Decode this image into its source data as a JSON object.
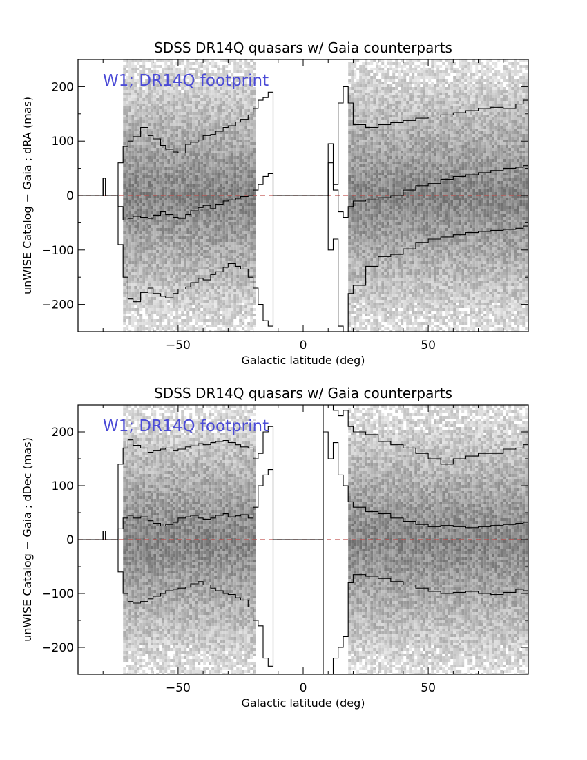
{
  "colors": {
    "annotation": "#4b4bd6",
    "zero_line": "#c0504d",
    "density": "#808080",
    "contours": "#000000"
  },
  "chart_data": [
    {
      "type": "heatmap",
      "title": "SDSS DR14Q quasars w/ Gaia counterparts",
      "xlabel": "Galactic latitude (deg)",
      "ylabel": "unWISE Catalog − Gaia ; dRA (mas)",
      "annotation": "W1; DR14Q footprint",
      "xlim": [
        -90,
        90
      ],
      "ylim": [
        -250,
        250
      ],
      "xticks": [
        -50,
        0,
        50
      ],
      "xtick_labels": [
        "−50",
        "0",
        "50"
      ],
      "yticks": [
        -200,
        -100,
        0,
        100,
        200
      ],
      "ytick_labels": [
        "−200",
        "−100",
        "0",
        "100",
        "200"
      ],
      "reference_line_y": 0,
      "density_ranges": [
        [
          -72,
          -20
        ],
        [
          18,
          90
        ]
      ],
      "series": [
        {
          "x": [
            -88,
            -80,
            -80,
            -79,
            -79,
            -74,
            -72,
            -70,
            -68,
            -65,
            -62,
            -60,
            -57,
            -55,
            -52,
            -50,
            -47,
            -45,
            -42,
            -40,
            -37,
            -35,
            -32,
            -30,
            -27,
            -25,
            -22,
            -20,
            -18,
            -16,
            -14,
            -12,
            -10,
            8,
            10,
            12,
            14,
            16,
            18,
            20,
            25,
            30,
            35,
            40,
            45,
            50,
            55,
            60,
            65,
            70,
            75,
            80,
            85,
            88,
            90
          ],
          "y": [
            0,
            0,
            32,
            32,
            0,
            60,
            90,
            100,
            108,
            125,
            110,
            104,
            92,
            85,
            80,
            78,
            94,
            98,
            102,
            110,
            112,
            118,
            125,
            128,
            135,
            140,
            148,
            160,
            175,
            180,
            190,
            0,
            0,
            0,
            95,
            20,
            170,
            200,
            170,
            130,
            125,
            130,
            134,
            138,
            142,
            144,
            148,
            152,
            156,
            160,
            162,
            160,
            168,
            175,
            170
          ]
        },
        {
          "x": [
            -88,
            -80,
            -80,
            -79,
            -79,
            -74,
            -72,
            -70,
            -68,
            -65,
            -62,
            -60,
            -57,
            -55,
            -52,
            -50,
            -47,
            -45,
            -42,
            -40,
            -37,
            -35,
            -32,
            -30,
            -27,
            -25,
            -22,
            -20,
            -18,
            -16,
            -14,
            -12,
            -10,
            8,
            10,
            12,
            14,
            16,
            18,
            20,
            25,
            30,
            35,
            40,
            45,
            50,
            55,
            60,
            65,
            70,
            75,
            80,
            85,
            88,
            90
          ],
          "y": [
            0,
            0,
            32,
            32,
            0,
            -20,
            -45,
            -42,
            -38,
            -40,
            -42,
            -36,
            -30,
            -35,
            -40,
            -42,
            -35,
            -28,
            -22,
            -18,
            -24,
            -16,
            -10,
            -8,
            -5,
            -2,
            0,
            10,
            20,
            35,
            40,
            0,
            0,
            0,
            60,
            10,
            -30,
            -40,
            -20,
            -10,
            -8,
            -4,
            0,
            10,
            18,
            22,
            30,
            35,
            38,
            42,
            46,
            50,
            52,
            55,
            55
          ]
        },
        {
          "x": [
            -88,
            -80,
            -80,
            -79,
            -79,
            -74,
            -72,
            -70,
            -68,
            -65,
            -62,
            -60,
            -57,
            -55,
            -52,
            -50,
            -47,
            -45,
            -42,
            -40,
            -37,
            -35,
            -32,
            -30,
            -27,
            -25,
            -22,
            -20,
            -18,
            -16,
            -14,
            -12,
            -10,
            8,
            10,
            12,
            14,
            16,
            18,
            20,
            25,
            30,
            35,
            40,
            45,
            50,
            55,
            60,
            65,
            70,
            75,
            80,
            85,
            88,
            90
          ],
          "y": [
            0,
            0,
            32,
            32,
            0,
            -90,
            -150,
            -190,
            -195,
            -178,
            -170,
            -180,
            -185,
            -188,
            -180,
            -172,
            -168,
            -160,
            -152,
            -155,
            -145,
            -140,
            -132,
            -125,
            -130,
            -135,
            -150,
            -170,
            -200,
            -230,
            -240,
            0,
            0,
            0,
            -100,
            -80,
            -240,
            -250,
            -180,
            -165,
            -130,
            -112,
            -108,
            -98,
            -86,
            -80,
            -76,
            -72,
            -68,
            -66,
            -64,
            -62,
            -60,
            -56,
            -60
          ]
        }
      ]
    },
    {
      "type": "heatmap",
      "title": "SDSS DR14Q quasars w/ Gaia counterparts",
      "xlabel": "Galactic latitude (deg)",
      "ylabel": "unWISE Catalog − Gaia ; dDec (mas)",
      "annotation": "W1; DR14Q footprint",
      "xlim": [
        -90,
        90
      ],
      "ylim": [
        -250,
        250
      ],
      "xticks": [
        -50,
        0,
        50
      ],
      "xtick_labels": [
        "−50",
        "0",
        "50"
      ],
      "yticks": [
        -200,
        -100,
        0,
        100,
        200
      ],
      "ytick_labels": [
        "−200",
        "−100",
        "0",
        "100",
        "200"
      ],
      "reference_line_y": 0,
      "density_ranges": [
        [
          -72,
          -20
        ],
        [
          18,
          90
        ]
      ],
      "series": [
        {
          "x": [
            -88,
            -80,
            -80,
            -79,
            -79,
            -74,
            -72,
            -70,
            -68,
            -65,
            -62,
            -60,
            -57,
            -55,
            -52,
            -50,
            -47,
            -45,
            -42,
            -40,
            -37,
            -35,
            -32,
            -30,
            -27,
            -25,
            -22,
            -20,
            -18,
            -16,
            -14,
            -12,
            -10,
            8,
            10,
            12,
            14,
            16,
            18,
            20,
            25,
            30,
            35,
            40,
            45,
            50,
            55,
            60,
            65,
            70,
            75,
            80,
            85,
            88,
            90
          ],
          "y": [
            0,
            0,
            16,
            16,
            0,
            140,
            170,
            185,
            175,
            170,
            162,
            165,
            168,
            170,
            165,
            168,
            172,
            174,
            178,
            176,
            180,
            182,
            184,
            180,
            176,
            172,
            170,
            150,
            160,
            200,
            210,
            0,
            0,
            250,
            250,
            240,
            230,
            240,
            210,
            200,
            195,
            182,
            176,
            170,
            160,
            150,
            140,
            150,
            155,
            160,
            160,
            168,
            170,
            176,
            180
          ]
        },
        {
          "x": [
            -88,
            -80,
            -80,
            -79,
            -79,
            -74,
            -72,
            -70,
            -68,
            -65,
            -62,
            -60,
            -57,
            -55,
            -52,
            -50,
            -47,
            -45,
            -42,
            -40,
            -37,
            -35,
            -32,
            -30,
            -27,
            -25,
            -22,
            -20,
            -18,
            -16,
            -14,
            -12,
            -10,
            8,
            10,
            12,
            14,
            16,
            18,
            20,
            25,
            30,
            35,
            40,
            45,
            50,
            55,
            60,
            65,
            70,
            75,
            80,
            85,
            88,
            90
          ],
          "y": [
            0,
            0,
            16,
            16,
            0,
            20,
            40,
            45,
            40,
            42,
            35,
            30,
            25,
            28,
            32,
            40,
            42,
            45,
            40,
            38,
            40,
            45,
            48,
            42,
            44,
            46,
            40,
            60,
            100,
            120,
            130,
            0,
            0,
            200,
            150,
            180,
            120,
            100,
            70,
            60,
            52,
            48,
            40,
            34,
            28,
            24,
            26,
            24,
            22,
            24,
            26,
            28,
            30,
            32,
            30
          ]
        },
        {
          "x": [
            -88,
            -80,
            -80,
            -79,
            -79,
            -74,
            -72,
            -70,
            -68,
            -65,
            -62,
            -60,
            -57,
            -55,
            -52,
            -50,
            -47,
            -45,
            -42,
            -40,
            -37,
            -35,
            -32,
            -30,
            -27,
            -25,
            -22,
            -20,
            -18,
            -16,
            -14,
            -12,
            -10,
            8,
            10,
            12,
            14,
            16,
            18,
            20,
            25,
            30,
            35,
            40,
            45,
            50,
            55,
            60,
            65,
            70,
            75,
            80,
            85,
            88,
            90
          ],
          "y": [
            0,
            0,
            16,
            16,
            0,
            -60,
            -100,
            -115,
            -118,
            -115,
            -110,
            -105,
            -100,
            -95,
            -92,
            -90,
            -88,
            -82,
            -78,
            -84,
            -90,
            -95,
            -100,
            -102,
            -108,
            -112,
            -125,
            -150,
            -160,
            -220,
            -235,
            0,
            0,
            -250,
            -250,
            -220,
            -200,
            -180,
            -80,
            -65,
            -68,
            -72,
            -78,
            -84,
            -90,
            -96,
            -100,
            -98,
            -96,
            -100,
            -102,
            -98,
            -92,
            -95,
            -100
          ]
        }
      ]
    }
  ]
}
